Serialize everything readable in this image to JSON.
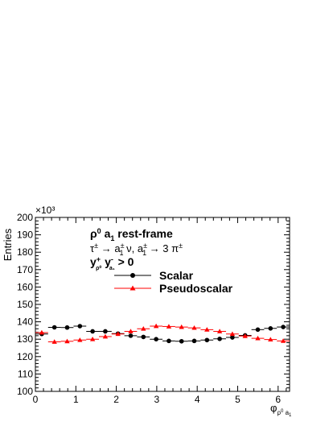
{
  "chart_data": {
    "type": "scatter",
    "ylabel": "Entries",
    "y_scale_label": "×10³",
    "xlabel": "φ_{ρ⁰ a₁}",
    "xlim": [
      0,
      6.2832
    ],
    "ylim": [
      100,
      200
    ],
    "x_ticks": [
      "0",
      "1",
      "2",
      "3",
      "4",
      "5",
      "6"
    ],
    "y_ticks": [
      "100",
      "110",
      "120",
      "130",
      "140",
      "150",
      "160",
      "170",
      "180",
      "190",
      "200"
    ],
    "annotation": {
      "line1": "ρ⁰ a₁  rest-frame",
      "line2": "τ± → a₁± ν, a₁± → 3 π±",
      "line3": "y⁺ρ⁰ y⁻a₁ > 0"
    },
    "legend_position": "top-left",
    "series": [
      {
        "name": "Scalar",
        "color": "#000000",
        "marker": "circle",
        "x": [
          0.157,
          0.471,
          0.785,
          1.1,
          1.414,
          1.728,
          2.042,
          2.356,
          2.67,
          2.985,
          3.299,
          3.613,
          3.927,
          4.241,
          4.555,
          4.869,
          5.184,
          5.498,
          5.812,
          6.126
        ],
        "values": [
          133.0,
          136.8,
          136.7,
          137.5,
          134.5,
          134.5,
          133.2,
          132.0,
          131.3,
          130.0,
          129.0,
          128.8,
          129.0,
          129.5,
          130.2,
          131.0,
          132.2,
          135.5,
          136.2,
          137.0
        ]
      },
      {
        "name": "Pseudoscalar",
        "color": "#ff0000",
        "marker": "triangle",
        "x": [
          0.157,
          0.471,
          0.785,
          1.1,
          1.414,
          1.728,
          2.042,
          2.356,
          2.67,
          2.985,
          3.299,
          3.613,
          3.927,
          4.241,
          4.555,
          4.869,
          5.184,
          5.498,
          5.812,
          6.126
        ],
        "values": [
          133.8,
          128.5,
          128.8,
          129.5,
          130.0,
          131.5,
          133.0,
          134.5,
          136.0,
          137.5,
          137.3,
          137.0,
          136.5,
          135.5,
          134.5,
          133.0,
          131.8,
          130.5,
          129.8,
          129.0
        ]
      }
    ]
  }
}
